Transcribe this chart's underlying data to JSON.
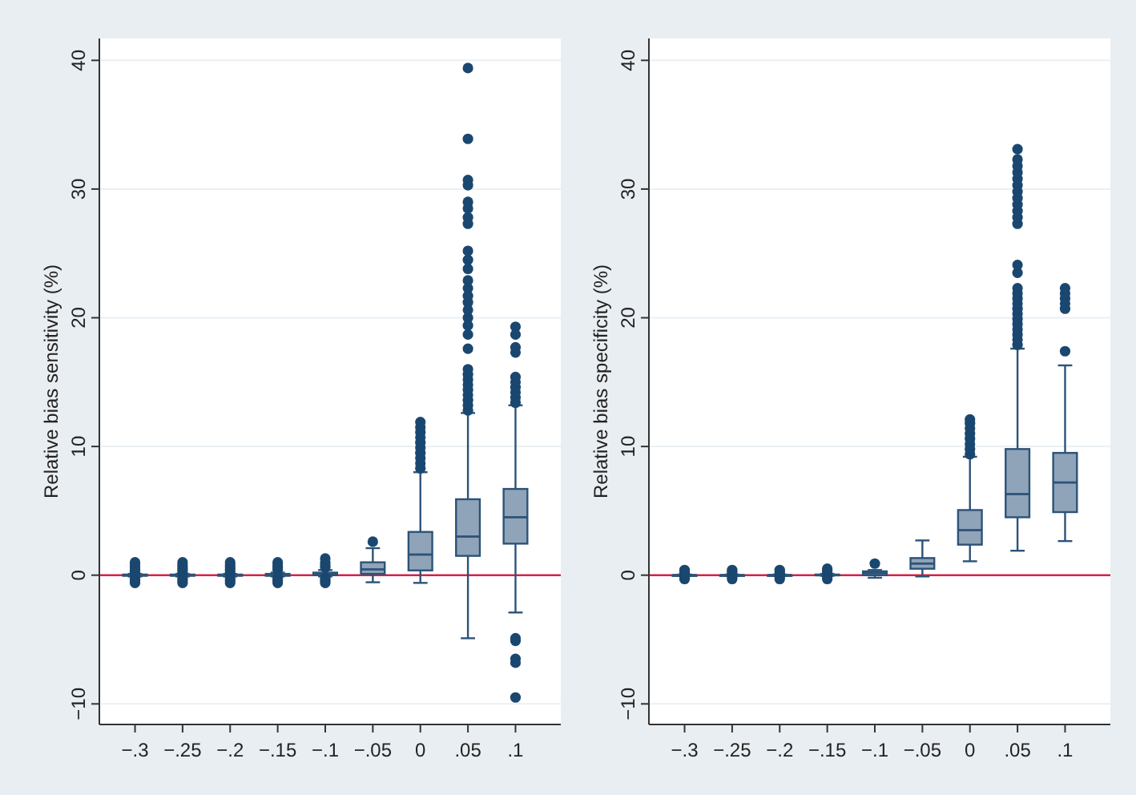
{
  "chart_data": [
    {
      "type": "box",
      "ylabel": "Relative bias sensitivity (%)",
      "categories": [
        "−.3",
        "−.25",
        "−.2",
        "−.15",
        "−.1",
        "−.05",
        "0",
        ".05",
        ".1"
      ],
      "ylim": [
        -11.6,
        41.7
      ],
      "yticks": [
        {
          "value": -10,
          "label": "−10"
        },
        0,
        10,
        20,
        30,
        40
      ],
      "grid": "y",
      "color": "#90a4b9",
      "ref_lines": [
        {
          "axis": "y",
          "value": 0,
          "color": "#d6224a"
        }
      ],
      "boxes": [
        {
          "low": -0.1,
          "q1": -0.05,
          "median": 0,
          "q3": 0.05,
          "high": 0.1,
          "outliers": [
            -0.6,
            -0.4,
            -0.2,
            0.2,
            0.4,
            0.6,
            0.8,
            1.0
          ]
        },
        {
          "low": -0.1,
          "q1": -0.05,
          "median": 0,
          "q3": 0.05,
          "high": 0.1,
          "outliers": [
            -0.6,
            -0.4,
            -0.2,
            0.2,
            0.4,
            0.6,
            0.8,
            1.0
          ]
        },
        {
          "low": -0.1,
          "q1": -0.05,
          "median": 0,
          "q3": 0.05,
          "high": 0.1,
          "outliers": [
            -0.6,
            -0.4,
            -0.2,
            0.2,
            0.4,
            0.6,
            0.8,
            1.0
          ]
        },
        {
          "low": -0.1,
          "q1": -0.05,
          "median": 0,
          "q3": 0.1,
          "high": 0.2,
          "outliers": [
            -0.6,
            -0.4,
            -0.2,
            0.4,
            0.6,
            0.8,
            1.0
          ]
        },
        {
          "low": -0.1,
          "q1": 0,
          "median": 0.1,
          "q3": 0.2,
          "high": 0.4,
          "outliers": [
            -0.6,
            -0.4,
            -0.2,
            0.6,
            0.8,
            1.0,
            1.3
          ]
        },
        {
          "low": -0.55,
          "q1": 0.1,
          "median": 0.45,
          "q3": 1.0,
          "high": 2.1,
          "outliers": [
            2.6
          ]
        },
        {
          "low": -0.6,
          "q1": 0.37,
          "median": 1.6,
          "q3": 3.36,
          "high": 8.0,
          "outliers": [
            8.3,
            8.7,
            9.1,
            9.5,
            9.9,
            10.3,
            10.7,
            11.1,
            11.5,
            11.9
          ]
        },
        {
          "low": -4.9,
          "q1": 1.5,
          "median": 3.0,
          "q3": 5.9,
          "high": 12.6,
          "outliers": [
            12.8,
            13.2,
            13.6,
            14.0,
            14.4,
            14.8,
            15.2,
            15.6,
            16.0,
            17.6,
            18.7,
            19.4,
            20.0,
            20.6,
            21.2,
            21.7,
            22.3,
            22.9,
            23.8,
            24.5,
            25.2,
            27.3,
            27.8,
            28.5,
            29.0,
            30.3,
            30.7,
            33.9,
            39.4
          ]
        },
        {
          "low": -2.9,
          "q1": 2.45,
          "median": 4.5,
          "q3": 6.7,
          "high": 13.2,
          "outliers": [
            -9.5,
            -6.8,
            -6.5,
            -5.1,
            -4.9,
            13.4,
            13.8,
            14.2,
            14.6,
            15.0,
            15.4,
            17.3,
            17.7,
            18.7,
            19.3
          ]
        }
      ]
    },
    {
      "type": "box",
      "ylabel": "Relative bias specificity (%)",
      "categories": [
        "−.3",
        "−.25",
        "−.2",
        "−.15",
        "−.1",
        "−.05",
        "0",
        ".05",
        ".1"
      ],
      "ylim": [
        -11.6,
        41.7
      ],
      "yticks": [
        {
          "value": -10,
          "label": "−10"
        },
        0,
        10,
        20,
        30,
        40
      ],
      "grid": "y",
      "color": "#90a4b9",
      "ref_lines": [
        {
          "axis": "y",
          "value": 0,
          "color": "#d6224a"
        }
      ],
      "boxes": [
        {
          "low": -0.05,
          "q1": 0,
          "median": 0,
          "q3": 0,
          "high": 0.05,
          "outliers": [
            -0.3,
            -0.15,
            0.15,
            0.3,
            0.4
          ]
        },
        {
          "low": -0.05,
          "q1": 0,
          "median": 0,
          "q3": 0,
          "high": 0.05,
          "outliers": [
            -0.3,
            -0.15,
            0.15,
            0.3,
            0.4
          ]
        },
        {
          "low": -0.05,
          "q1": 0,
          "median": 0,
          "q3": 0,
          "high": 0.05,
          "outliers": [
            -0.3,
            -0.15,
            0.15,
            0.3,
            0.4
          ]
        },
        {
          "low": -0.05,
          "q1": 0,
          "median": 0,
          "q3": 0.05,
          "high": 0.1,
          "outliers": [
            -0.3,
            -0.15,
            0.2,
            0.35,
            0.5
          ]
        },
        {
          "low": -0.2,
          "q1": 0,
          "median": 0.15,
          "q3": 0.3,
          "high": 0.4,
          "outliers": [
            0.9
          ]
        },
        {
          "low": -0.1,
          "q1": 0.5,
          "median": 0.9,
          "q3": 1.33,
          "high": 2.7
        },
        {
          "low": 1.08,
          "q1": 2.37,
          "median": 3.5,
          "q3": 5.06,
          "high": 9.2,
          "outliers": [
            9.4,
            9.8,
            10.2,
            10.6,
            11.0,
            11.4,
            11.8,
            12.1
          ]
        },
        {
          "low": 1.9,
          "q1": 4.5,
          "median": 6.3,
          "q3": 9.8,
          "high": 17.6,
          "outliers": [
            17.9,
            18.3,
            18.7,
            19.1,
            19.5,
            19.9,
            20.3,
            20.7,
            21.1,
            21.5,
            21.9,
            22.3,
            23.5,
            24.1,
            27.3,
            27.8,
            28.3,
            28.8,
            29.3,
            29.8,
            30.3,
            30.8,
            31.3,
            31.8,
            32.3,
            33.1
          ]
        },
        {
          "low": 2.65,
          "q1": 4.9,
          "median": 7.2,
          "q3": 9.5,
          "high": 16.3,
          "outliers": [
            17.4,
            20.7,
            21.1,
            21.5,
            21.9,
            22.3
          ]
        }
      ]
    }
  ]
}
